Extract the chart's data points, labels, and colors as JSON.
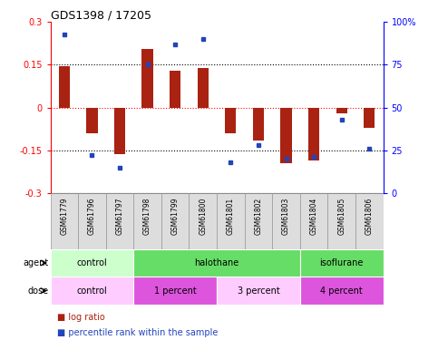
{
  "title": "GDS1398 / 17205",
  "samples": [
    "GSM61779",
    "GSM61796",
    "GSM61797",
    "GSM61798",
    "GSM61799",
    "GSM61800",
    "GSM61801",
    "GSM61802",
    "GSM61803",
    "GSM61804",
    "GSM61805",
    "GSM61806"
  ],
  "log_ratio": [
    0.145,
    -0.09,
    -0.165,
    0.205,
    0.13,
    0.14,
    -0.09,
    -0.115,
    -0.195,
    -0.185,
    -0.02,
    -0.07
  ],
  "percentile": [
    93,
    22,
    15,
    75,
    87,
    90,
    18,
    28,
    20,
    21,
    43,
    26
  ],
  "ylim": [
    -0.3,
    0.3
  ],
  "yticks_left": [
    -0.3,
    -0.15,
    0,
    0.15,
    0.3
  ],
  "yticks_right": [
    0,
    25,
    50,
    75,
    100
  ],
  "hlines_dotted": [
    0.15,
    -0.15
  ],
  "hline_red": 0,
  "bar_color": "#aa2211",
  "dot_color": "#2244bb",
  "agent_groups": [
    {
      "label": "control",
      "start": 0,
      "end": 3,
      "color": "#ccffcc"
    },
    {
      "label": "halothane",
      "start": 3,
      "end": 9,
      "color": "#66dd66"
    },
    {
      "label": "isoflurane",
      "start": 9,
      "end": 12,
      "color": "#66dd66"
    }
  ],
  "dose_groups": [
    {
      "label": "control",
      "start": 0,
      "end": 3,
      "color": "#ffccff"
    },
    {
      "label": "1 percent",
      "start": 3,
      "end": 6,
      "color": "#dd55dd"
    },
    {
      "label": "3 percent",
      "start": 6,
      "end": 9,
      "color": "#ffccff"
    },
    {
      "label": "4 percent",
      "start": 9,
      "end": 12,
      "color": "#dd55dd"
    }
  ],
  "background_color": "#ffffff",
  "sample_cell_color": "#dddddd",
  "sample_border_color": "#999999",
  "legend_log_ratio_color": "#aa2211",
  "legend_pct_color": "#2244bb"
}
